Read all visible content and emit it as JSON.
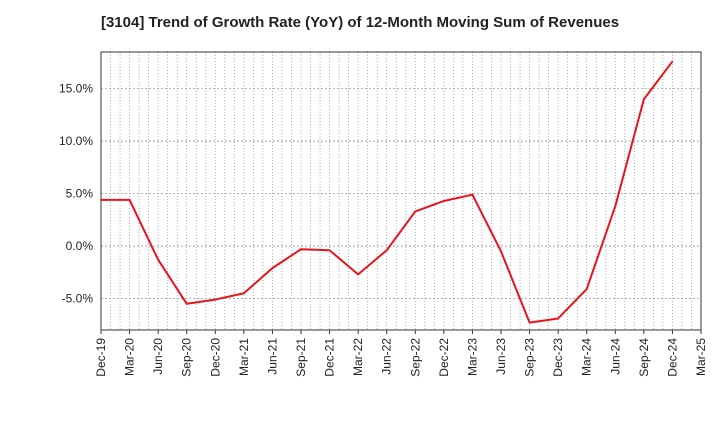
{
  "chart_data": {
    "type": "line",
    "title": "[3104]  Trend of Growth Rate (YoY) of 12-Month Moving Sum of Revenues",
    "xlabel": "",
    "ylabel": "",
    "x_ticks": [
      "Dec-19",
      "Mar-20",
      "Jun-20",
      "Sep-20",
      "Dec-20",
      "Mar-21",
      "Jun-21",
      "Sep-21",
      "Dec-21",
      "Mar-22",
      "Jun-22",
      "Sep-22",
      "Dec-22",
      "Mar-23",
      "Jun-23",
      "Sep-23",
      "Dec-23",
      "Mar-24",
      "Jun-24",
      "Sep-24",
      "Dec-24",
      "Mar-25"
    ],
    "y_ticks": [
      "15.0%",
      "10.0%",
      "5.0%",
      "0.0%",
      "-5.0%"
    ],
    "y_tick_values": [
      15,
      10,
      5,
      0,
      -5
    ],
    "ylim": [
      -8,
      18.5
    ],
    "grid": true,
    "legend": "none",
    "series": [
      {
        "color": "#e8141b",
        "x": [
          "Dec-19",
          "Mar-20",
          "Jun-20",
          "Sep-20",
          "Dec-20",
          "Mar-21",
          "Jun-21",
          "Sep-21",
          "Dec-21",
          "Mar-22",
          "Jun-22",
          "Sep-22",
          "Dec-22",
          "Mar-23",
          "Jun-23",
          "Sep-23",
          "Dec-23",
          "Mar-24",
          "Jun-24",
          "Sep-24",
          "Dec-24"
        ],
        "values": [
          4.4,
          4.4,
          -1.3,
          -5.5,
          -5.1,
          -4.5,
          -2.1,
          -0.3,
          -0.4,
          -2.7,
          -0.4,
          3.3,
          4.3,
          4.9,
          -0.5,
          -7.3,
          -6.9,
          -4.1,
          3.8,
          14.0,
          17.6
        ]
      }
    ]
  }
}
